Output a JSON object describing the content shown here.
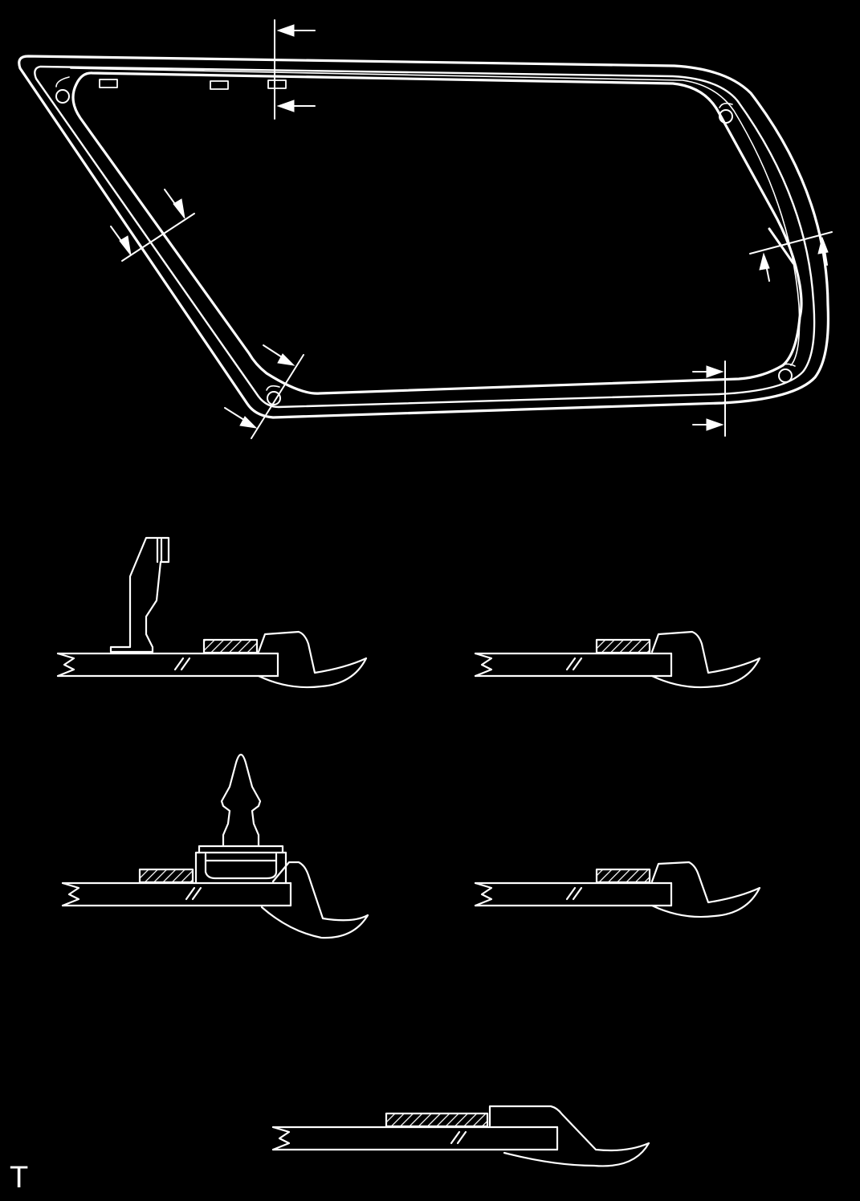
{
  "colors": {
    "background": "#000000",
    "line": "#ffffff"
  },
  "labels": {
    "corner": "T"
  }
}
